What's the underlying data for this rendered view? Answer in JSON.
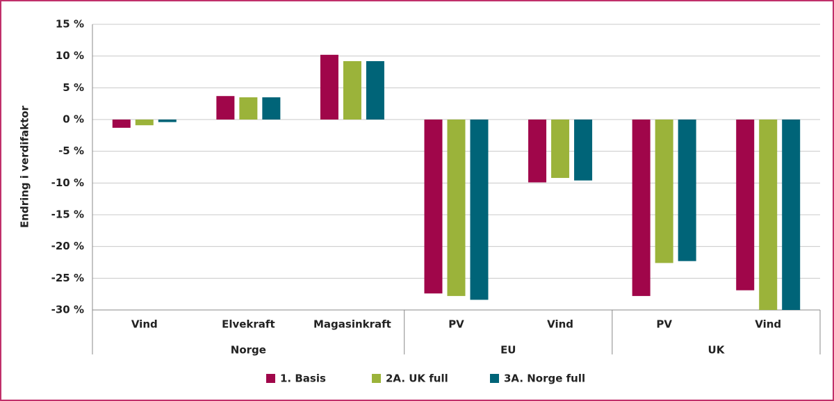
{
  "chart_data": {
    "type": "bar",
    "y_label": "Endring i verdifaktor",
    "groups": [
      {
        "name": "Norge",
        "categories": [
          "Vind",
          "Elvekraft",
          "Magasinkraft"
        ]
      },
      {
        "name": "EU",
        "categories": [
          "PV",
          "Vind"
        ]
      },
      {
        "name": "UK",
        "categories": [
          "PV",
          "Vind"
        ]
      }
    ],
    "series": [
      {
        "name": "1. Basis",
        "color": "#a0064a",
        "values": [
          -1.3,
          3.7,
          10.2,
          -27.4,
          -9.9,
          -27.8,
          -26.9
        ]
      },
      {
        "name": "2A. UK full",
        "color": "#9bb33a",
        "values": [
          -0.9,
          3.5,
          9.2,
          -27.8,
          -9.2,
          -22.6,
          -30
        ]
      },
      {
        "name": "3A. Norge full",
        "color": "#006478",
        "values": [
          -0.4,
          3.5,
          9.2,
          -28.4,
          -9.6,
          -22.3,
          -30
        ]
      }
    ],
    "ylim": [
      -30,
      15
    ],
    "yticks": [
      {
        "value": 15,
        "label": "15 %"
      },
      {
        "value": 10,
        "label": "10 %"
      },
      {
        "value": 5,
        "label": "5 %"
      },
      {
        "value": 0,
        "label": "0 %"
      },
      {
        "value": -5,
        "label": "-5 %"
      },
      {
        "value": -10,
        "label": "-10 %"
      },
      {
        "value": -15,
        "label": "-15 %"
      },
      {
        "value": -20,
        "label": "-20 %"
      },
      {
        "value": -25,
        "label": "-25 %"
      },
      {
        "value": -30,
        "label": "-30 %"
      }
    ],
    "grid": true,
    "legend": "bottom"
  }
}
